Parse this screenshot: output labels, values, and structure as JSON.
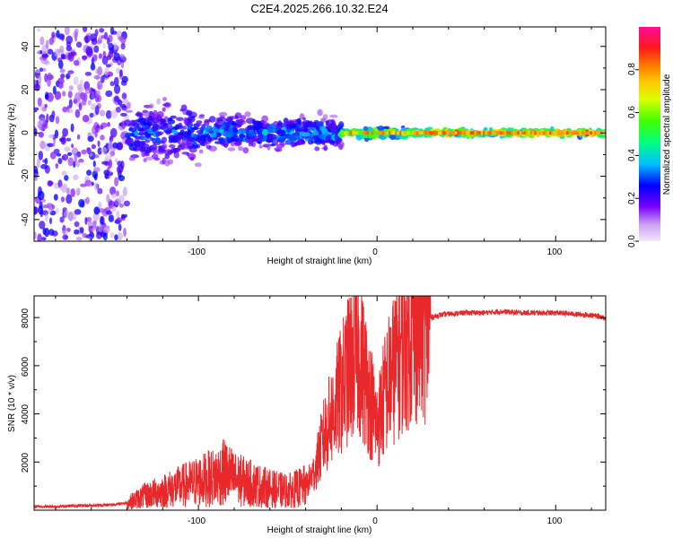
{
  "figure_title": "C2E4.2025.266.10.32.E24",
  "chart_data": [
    {
      "type": "heatmap",
      "xlabel": "Height of straight line (km)",
      "ylabel": "Frequency (Hz)",
      "xlim": [
        -192,
        128
      ],
      "ylim": [
        -50,
        49
      ],
      "xticks": [
        -100,
        0,
        100
      ],
      "yticks": [
        -40,
        -20,
        0,
        20,
        40
      ],
      "xtick_labels": [
        "-100",
        "0",
        "100"
      ],
      "ytick_labels": [
        "-40",
        "-20",
        "0",
        "20",
        "40"
      ],
      "colorbar": {
        "label": "Normalized spectral amplitude",
        "range": [
          0,
          1
        ],
        "ticks": [
          0.0,
          0.2,
          0.4,
          0.6,
          0.8
        ],
        "tick_labels": [
          "0.0",
          "0.2",
          "0.4",
          "0.6",
          "0.8"
        ],
        "colors": [
          "#e6ccf5",
          "#7a00ff",
          "#0000ff",
          "#00e5ff",
          "#00ff00",
          "#ffff00",
          "#ff8000",
          "#ff0000",
          "#ff0099"
        ]
      },
      "description_of_bands": [
        {
          "x_range": [
            -192,
            -140
          ],
          "spread_hz": 49,
          "amplitude": 0.15
        },
        {
          "x_range": [
            -140,
            -100
          ],
          "spread_hz": 18,
          "amplitude": 0.3
        },
        {
          "x_range": [
            -100,
            -20
          ],
          "spread_hz": 10,
          "amplitude": 0.35
        },
        {
          "x_range": [
            -20,
            20
          ],
          "spread_hz": 3,
          "amplitude": 0.7
        },
        {
          "x_range": [
            20,
            128
          ],
          "spread_hz": 2,
          "amplitude": 0.8
        }
      ]
    },
    {
      "type": "line",
      "xlabel": "Height of straight line (km)",
      "ylabel": "SNR (10 * v/v)",
      "xlim": [
        -192,
        128
      ],
      "ylim": [
        0,
        8900
      ],
      "xticks": [
        -100,
        0,
        100
      ],
      "yticks": [
        2000,
        4000,
        6000,
        8000
      ],
      "xtick_labels": [
        "-100",
        "0",
        "100"
      ],
      "ytick_labels": [
        "2000",
        "4000",
        "6000",
        "8000"
      ],
      "color": "#e8282b",
      "series": [
        {
          "name": "SNR",
          "x": [
            -192,
            -180,
            -170,
            -160,
            -150,
            -140,
            -130,
            -120,
            -110,
            -100,
            -90,
            -85,
            -80,
            -70,
            -60,
            -50,
            -40,
            -35,
            -30,
            -25,
            -20,
            -15,
            -10,
            -5,
            0,
            5,
            10,
            15,
            20,
            25,
            30,
            35,
            40,
            50,
            60,
            70,
            80,
            90,
            100,
            110,
            120,
            128
          ],
          "values": [
            150,
            150,
            180,
            200,
            220,
            300,
            600,
            800,
            1000,
            1200,
            1400,
            1600,
            1300,
            1100,
            900,
            800,
            1000,
            1600,
            3000,
            4000,
            5000,
            6000,
            6500,
            5000,
            3500,
            5000,
            6000,
            7000,
            7500,
            7800,
            8000,
            8100,
            8150,
            8200,
            8200,
            8250,
            8200,
            8200,
            8200,
            8150,
            8100,
            8000
          ]
        }
      ]
    }
  ]
}
